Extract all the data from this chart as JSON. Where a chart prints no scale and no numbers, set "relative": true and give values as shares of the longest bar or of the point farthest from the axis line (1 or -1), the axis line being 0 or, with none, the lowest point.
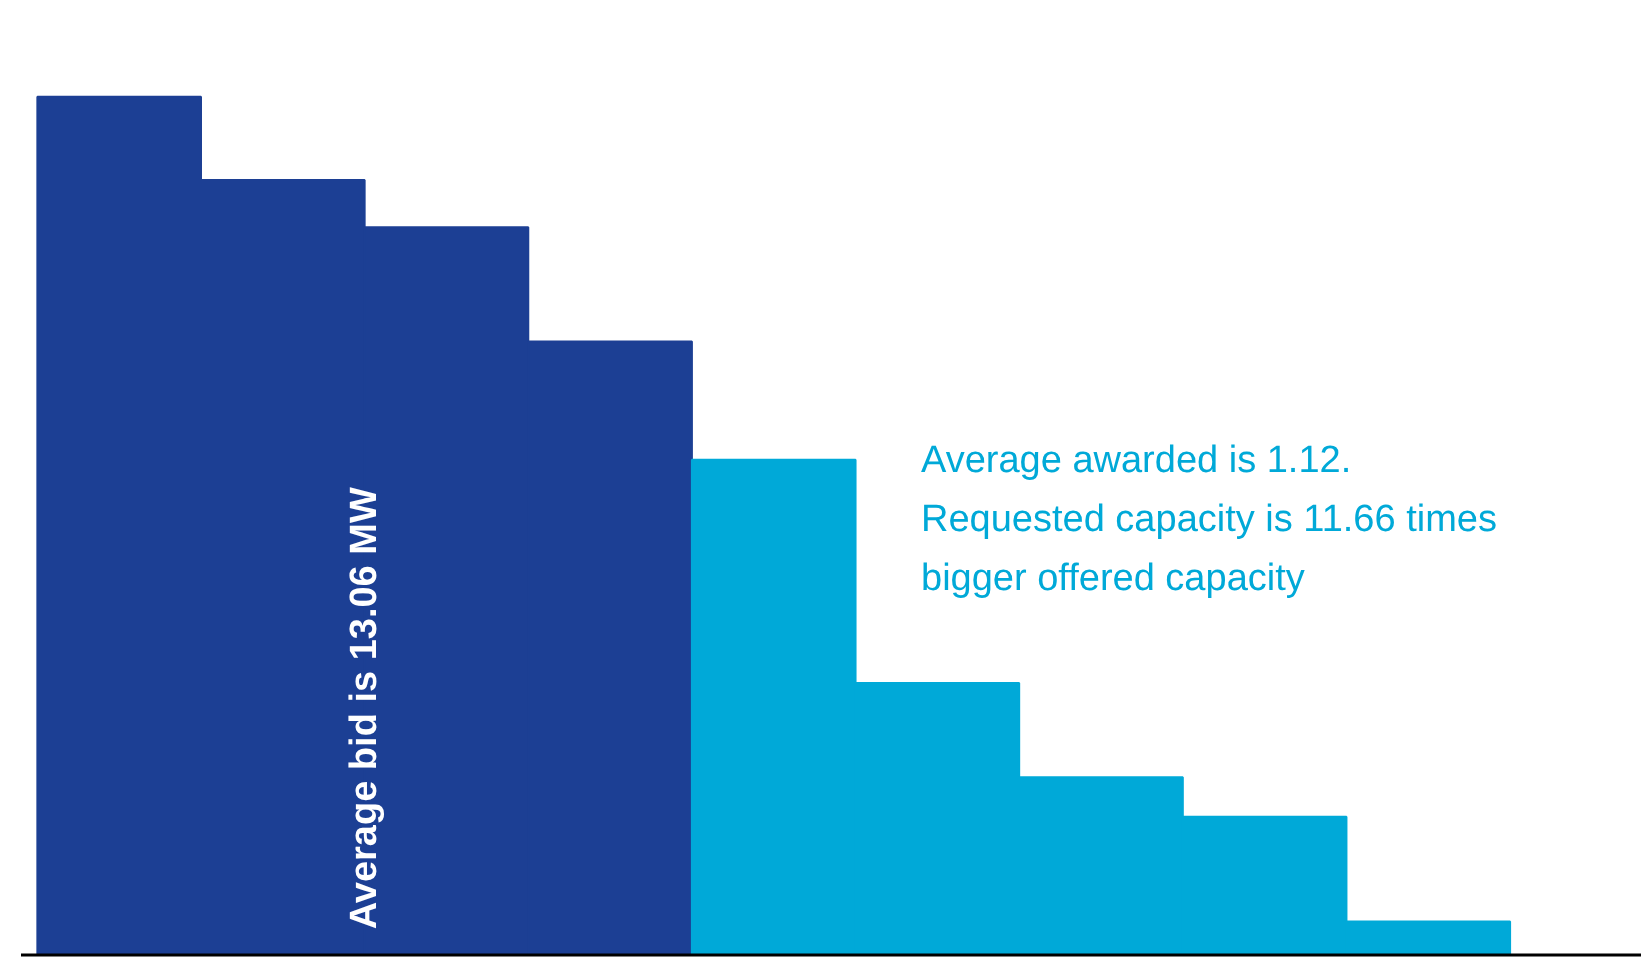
{
  "chart_data": {
    "type": "bar",
    "relative": true,
    "categories": [
      null,
      null,
      null,
      null,
      null,
      null,
      null,
      null,
      null
    ],
    "values": [
      1,
      0.903,
      0.848,
      0.715,
      0.577,
      0.317,
      0.207,
      0.161,
      0.039
    ],
    "colors": [
      "#1c3f94",
      "#1c3f94",
      "#1c3f94",
      "#1c3f94",
      "#00a9d8",
      "#00a9d8",
      "#00a9d8",
      "#00a9d8",
      "#00a9d8"
    ],
    "annotations": [
      "Average bid is 13.06 MW",
      "Average awarded is 1.12.\nRequested capacity is 11.66 times\nbigger offered capacity"
    ],
    "grid": false
  }
}
